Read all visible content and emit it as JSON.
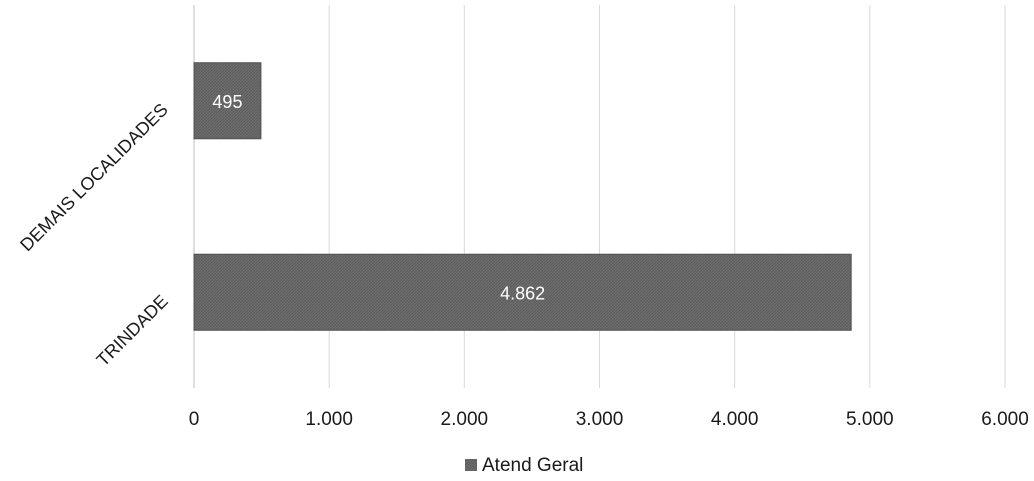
{
  "chart_data": {
    "type": "bar",
    "orientation": "horizontal",
    "categories": [
      "DEMAIS LOCALIDADES",
      "TRINDADE"
    ],
    "series": [
      {
        "name": "Atend Geral",
        "values": [
          495,
          4862
        ],
        "data_labels": [
          "495",
          "4.862"
        ]
      }
    ],
    "xlim": [
      0,
      6000
    ],
    "x_ticks": [
      0,
      1000,
      2000,
      3000,
      4000,
      5000,
      6000
    ],
    "x_tick_labels": [
      "0",
      "1.000",
      "2.000",
      "3.000",
      "4.000",
      "5.000",
      "6.000"
    ],
    "grid": true,
    "legend_position": "bottom",
    "colors": {
      "bar": "#6b6b6b",
      "data_label": "#ffffff",
      "grid": "#d9d9d9"
    }
  }
}
